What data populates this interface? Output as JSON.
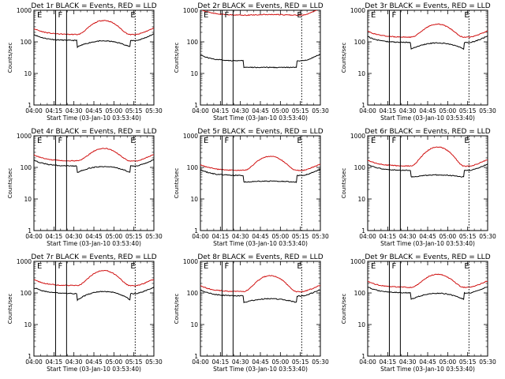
{
  "chart_data": {
    "type": "line",
    "figure_title": "",
    "panels": [
      {
        "title": "Det 1r BLACK = Events, RED = LLD",
        "black": {
          "base": 110,
          "hump": 1.2
        },
        "red": {
          "base": 170,
          "hump": 2.8
        }
      },
      {
        "title": "Det 2r BLACK = Events, RED = LLD",
        "black": {
          "base": 25,
          "hump": 0.5
        },
        "red": {
          "base": 700,
          "hump": 1.05
        }
      },
      {
        "title": "Det 3r BLACK = Events, RED = LLD",
        "black": {
          "base": 95,
          "hump": 1.2
        },
        "red": {
          "base": 140,
          "hump": 2.6
        }
      },
      {
        "title": "Det 4r BLACK = Events, RED = LLD",
        "black": {
          "base": 110,
          "hump": 1.2
        },
        "red": {
          "base": 160,
          "hump": 2.5
        }
      },
      {
        "title": "Det 5r BLACK = Events, RED = LLD",
        "black": {
          "base": 55,
          "hump": 0.6
        },
        "red": {
          "base": 80,
          "hump": 2.8
        }
      },
      {
        "title": "Det 6r BLACK = Events, RED = LLD",
        "black": {
          "base": 80,
          "hump": 0.7
        },
        "red": {
          "base": 110,
          "hump": 4.0
        }
      },
      {
        "title": "Det 7r BLACK = Events, RED = LLD",
        "black": {
          "base": 95,
          "hump": 1.6
        },
        "red": {
          "base": 170,
          "hump": 3.0
        }
      },
      {
        "title": "Det 8r BLACK = Events, RED = LLD",
        "black": {
          "base": 80,
          "hump": 0.9
        },
        "red": {
          "base": 110,
          "hump": 3.2
        }
      },
      {
        "title": "Det 9r BLACK = Events, RED = LLD",
        "black": {
          "base": 100,
          "hump": 1.2
        },
        "red": {
          "base": 150,
          "hump": 2.6
        }
      }
    ],
    "x_tick_labels": [
      "04:00",
      "04:15",
      "04:30",
      "04:45",
      "05:00",
      "05:15",
      "05:30"
    ],
    "xlabel": "Start Time (03-Jan-10 03:53:40)",
    "ylabel": "Counts/sec",
    "y_tick_labels": [
      "1",
      "10",
      "100",
      "1000"
    ],
    "ylim": [
      1,
      1000
    ],
    "yscale": "log",
    "x_range_minutes": [
      0,
      36
    ],
    "solid_vlines_minutes": [
      6.5,
      9.8
    ],
    "dotted_vlines_minutes": [
      30.4
    ],
    "flag_labels": [
      "E",
      "F",
      "E"
    ],
    "series_colors": {
      "events": "#000000",
      "lld": "#d01010"
    },
    "hump_window_minutes": [
      13,
      29
    ]
  }
}
